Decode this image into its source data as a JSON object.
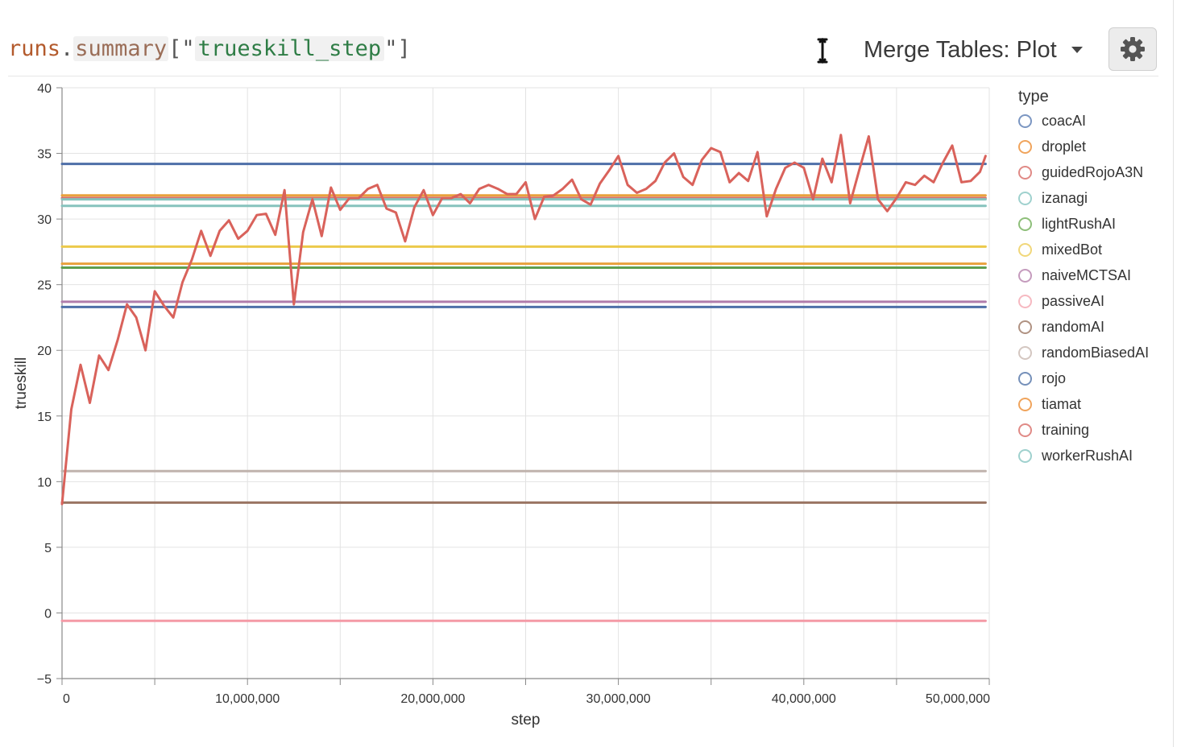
{
  "toolbar": {
    "expr_object": "runs",
    "expr_dot": ".",
    "expr_property": "summary",
    "expr_open": "[\"",
    "expr_key": "trueskill_step",
    "expr_close": "\"]",
    "panel_label": "Merge Tables: Plot",
    "cursor_icon": "text-cursor-icon",
    "settings_icon": "gear-icon"
  },
  "legend": {
    "title": "type",
    "items": [
      {
        "label": "coacAI",
        "color": "#7b96c2"
      },
      {
        "label": "droplet",
        "color": "#f0a45c"
      },
      {
        "label": "guidedRojoA3N",
        "color": "#e08a86"
      },
      {
        "label": "izanagi",
        "color": "#9fd1ce"
      },
      {
        "label": "lightRushAI",
        "color": "#8ebf7a"
      },
      {
        "label": "mixedBot",
        "color": "#f1d77a"
      },
      {
        "label": "naiveMCTSAI",
        "color": "#c59bbd"
      },
      {
        "label": "passiveAI",
        "color": "#f6b9c1"
      },
      {
        "label": "randomAI",
        "color": "#b09282"
      },
      {
        "label": "randomBiasedAI",
        "color": "#d4c7c1"
      },
      {
        "label": "rojo",
        "color": "#7590b9"
      },
      {
        "label": "tiamat",
        "color": "#f0a45c"
      },
      {
        "label": "training",
        "color": "#e08a86"
      },
      {
        "label": "workerRushAI",
        "color": "#9fd1ce"
      }
    ]
  },
  "chart_data": {
    "type": "line",
    "xlabel": "step",
    "ylabel": "trueskill",
    "xlim": [
      0,
      50000000
    ],
    "ylim": [
      -5,
      40
    ],
    "grid": true,
    "legend_position": "right",
    "x_ticks": [
      0,
      10000000,
      20000000,
      30000000,
      40000000,
      50000000
    ],
    "x_tick_labels": [
      "0",
      "10,000,000",
      "20,000,000",
      "30,000,000",
      "40,000,000",
      "50,000,000"
    ],
    "y_ticks": [
      -5,
      0,
      5,
      10,
      15,
      20,
      25,
      30,
      35,
      40
    ],
    "y_tick_labels": [
      "−5",
      "0",
      "5",
      "10",
      "15",
      "20",
      "25",
      "30",
      "35",
      "40"
    ],
    "series": [
      {
        "name": "coacAI",
        "color": "#4e6fa8",
        "x": [
          0,
          49800000
        ],
        "y": [
          34.2,
          34.2
        ]
      },
      {
        "name": "droplet",
        "color": "#e8a13c",
        "x": [
          0,
          49800000
        ],
        "y": [
          31.8,
          31.8
        ]
      },
      {
        "name": "guidedRojoA3N",
        "color": "#d96d68",
        "x": [
          0,
          49800000
        ],
        "y": [
          31.6,
          31.6
        ]
      },
      {
        "name": "izanagi",
        "color": "#86c3bd",
        "x": [
          0,
          49800000
        ],
        "y": [
          31.5,
          31.5
        ]
      },
      {
        "name": "lightRushAI",
        "color": "#5e9e4f",
        "x": [
          0,
          49800000
        ],
        "y": [
          26.3,
          26.3
        ]
      },
      {
        "name": "mixedBot",
        "color": "#ecc94b",
        "x": [
          0,
          49800000
        ],
        "y": [
          27.9,
          27.9
        ]
      },
      {
        "name": "naiveMCTSAI",
        "color": "#b07cab",
        "x": [
          0,
          49800000
        ],
        "y": [
          23.7,
          23.7
        ]
      },
      {
        "name": "passiveAI",
        "color": "#f49aa6",
        "x": [
          0,
          49800000
        ],
        "y": [
          -0.6,
          -0.6
        ]
      },
      {
        "name": "randomAI",
        "color": "#9a7563",
        "x": [
          0,
          49800000
        ],
        "y": [
          8.4,
          8.4
        ]
      },
      {
        "name": "randomBiasedAI",
        "color": "#c0b3ad",
        "x": [
          0,
          49800000
        ],
        "y": [
          10.8,
          10.8
        ]
      },
      {
        "name": "rojo",
        "color": "#4e6fa8",
        "x": [
          0,
          49800000
        ],
        "y": [
          23.3,
          23.3
        ]
      },
      {
        "name": "tiamat",
        "color": "#e8a13c",
        "x": [
          0,
          49800000
        ],
        "y": [
          26.6,
          26.6
        ]
      },
      {
        "name": "workerRushAI",
        "color": "#86c3bd",
        "x": [
          0,
          49800000
        ],
        "y": [
          31.0,
          31.0
        ]
      },
      {
        "name": "training",
        "color": "#d9625b",
        "x": [
          0,
          500000,
          1000000,
          1500000,
          2000000,
          2500000,
          3000000,
          3500000,
          4000000,
          4500000,
          5000000,
          5500000,
          6000000,
          6500000,
          7000000,
          7500000,
          8000000,
          8500000,
          9000000,
          9500000,
          10000000,
          10500000,
          11000000,
          11500000,
          12000000,
          12500000,
          13000000,
          13500000,
          14000000,
          14500000,
          15000000,
          15500000,
          16000000,
          16500000,
          17000000,
          17500000,
          18000000,
          18500000,
          19000000,
          19500000,
          20000000,
          20500000,
          21000000,
          21500000,
          22000000,
          22500000,
          23000000,
          23500000,
          24000000,
          24500000,
          25000000,
          25500000,
          26000000,
          26500000,
          27000000,
          27500000,
          28000000,
          28500000,
          29000000,
          29500000,
          30000000,
          30500000,
          31000000,
          31500000,
          32000000,
          32500000,
          33000000,
          33500000,
          34000000,
          34500000,
          35000000,
          35500000,
          36000000,
          36500000,
          37000000,
          37500000,
          38000000,
          38500000,
          39000000,
          39500000,
          40000000,
          40500000,
          41000000,
          41500000,
          42000000,
          42500000,
          43000000,
          43500000,
          44000000,
          44500000,
          45000000,
          45500000,
          46000000,
          46500000,
          47000000,
          47500000,
          48000000,
          48500000,
          49000000,
          49500000,
          49800000
        ],
        "y": [
          8.3,
          15.5,
          18.9,
          16.0,
          19.6,
          18.5,
          20.8,
          23.5,
          22.5,
          20.0,
          24.5,
          23.4,
          22.5,
          25.2,
          26.9,
          29.1,
          27.2,
          29.1,
          29.9,
          28.5,
          29.1,
          30.3,
          30.4,
          28.8,
          32.2,
          23.5,
          29.0,
          31.5,
          28.7,
          32.4,
          30.7,
          31.6,
          31.6,
          32.3,
          32.6,
          30.8,
          30.5,
          28.3,
          30.9,
          32.2,
          30.3,
          31.6,
          31.6,
          31.9,
          31.2,
          32.3,
          32.6,
          32.3,
          31.9,
          31.9,
          32.8,
          30.0,
          31.7,
          31.8,
          32.3,
          33.0,
          31.5,
          31.1,
          32.7,
          33.7,
          34.8,
          32.6,
          32.0,
          32.3,
          32.9,
          34.3,
          35.0,
          33.2,
          32.6,
          34.5,
          35.4,
          35.1,
          32.8,
          33.5,
          32.9,
          35.1,
          30.2,
          32.3,
          33.9,
          34.3,
          33.9,
          31.5,
          34.6,
          32.8,
          36.4,
          31.2,
          33.8,
          36.3,
          31.5,
          30.6,
          31.6,
          32.8,
          32.6,
          33.3,
          32.8,
          34.3,
          35.6,
          32.8,
          32.9,
          33.6,
          34.8
        ]
      }
    ]
  }
}
